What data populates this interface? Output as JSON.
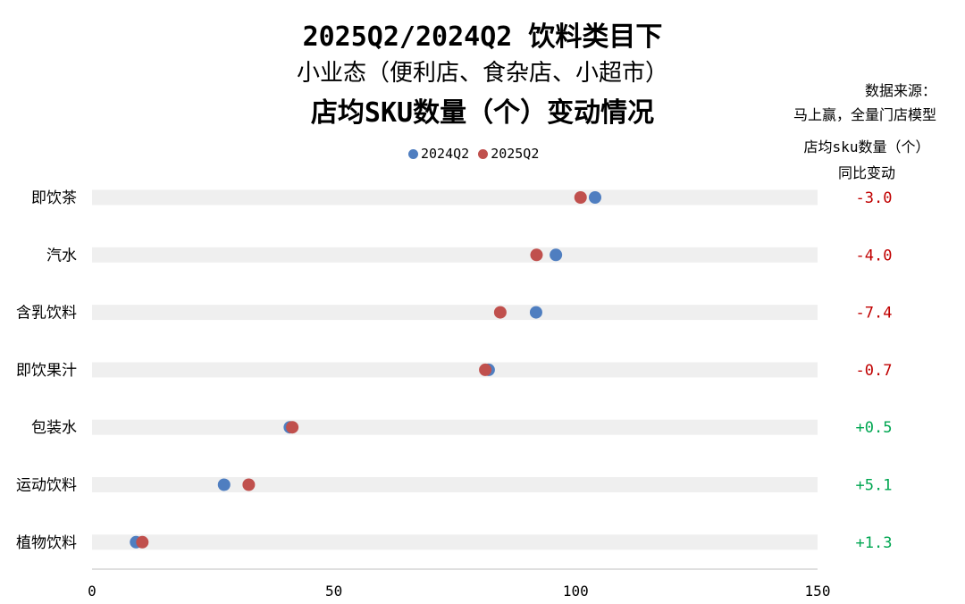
{
  "title_lines": [
    "2025Q2/2024Q2 饮料类目下",
    "小业态（便利店、食杂店、小超市）",
    "店均SKU数量（个）变动情况"
  ],
  "source_lines": [
    "数据来源：",
    "马上赢，全量门店模型"
  ],
  "column_header_lines": [
    "店均sku数量（个）",
    "同比变动"
  ],
  "colors": {
    "series_2024": "#4F7EC0",
    "series_2025": "#C0504D",
    "negative": "#C00000",
    "positive": "#00A651",
    "track": "#EFEFEF",
    "axis": "#BFBFBF"
  },
  "chart_data": {
    "type": "scatter",
    "orientation": "horizontal-dot-plot",
    "categories": [
      "即饮茶",
      "汽水",
      "含乳饮料",
      "即饮果汁",
      "包装水",
      "运动饮料",
      "植物饮料"
    ],
    "series": [
      {
        "name": "2024Q2",
        "values": [
          104.0,
          95.9,
          91.8,
          82.0,
          40.9,
          27.3,
          9.1
        ]
      },
      {
        "name": "2025Q2",
        "values": [
          101.0,
          91.9,
          84.4,
          81.3,
          41.4,
          32.4,
          10.4
        ]
      }
    ],
    "changes": [
      "-3.0",
      "-4.0",
      "-7.4",
      "-0.7",
      "+0.5",
      "+5.1",
      "+1.3"
    ],
    "xlim": [
      0,
      150
    ],
    "xticks": [
      "0",
      "50",
      "100",
      "150"
    ],
    "legend": "top"
  }
}
